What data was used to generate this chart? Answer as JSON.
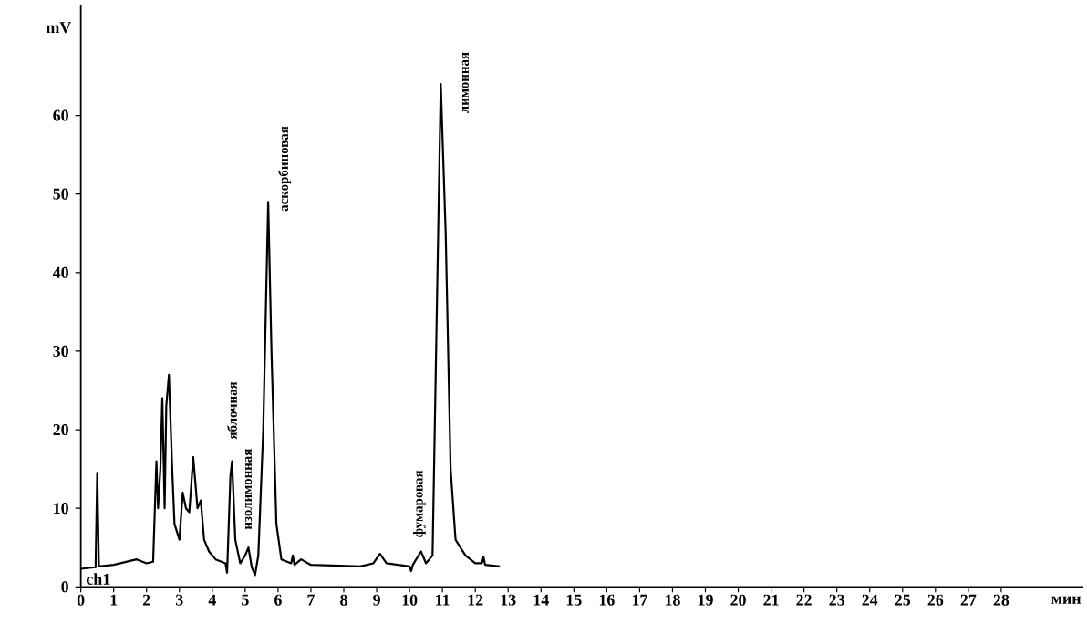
{
  "chart_data": {
    "type": "line",
    "xlabel": "мин",
    "ylabel": "mV",
    "x": [
      0,
      0.45,
      0.5,
      0.55,
      1.0,
      1.7,
      2.0,
      2.2,
      2.3,
      2.35,
      2.42,
      2.48,
      2.55,
      2.6,
      2.68,
      2.78,
      2.85,
      3.0,
      3.1,
      3.2,
      3.3,
      3.42,
      3.55,
      3.65,
      3.75,
      3.9,
      4.1,
      4.4,
      4.45,
      4.55,
      4.6,
      4.7,
      4.85,
      5.0,
      5.1,
      5.2,
      5.3,
      5.4,
      5.55,
      5.7,
      5.8,
      5.95,
      6.1,
      6.4,
      6.45,
      6.5,
      6.7,
      7.0,
      8.5,
      8.9,
      9.1,
      9.3,
      10.0,
      10.05,
      10.1,
      10.35,
      10.5,
      10.7,
      10.85,
      10.95,
      11.1,
      11.25,
      11.4,
      11.7,
      12.0,
      12.2,
      12.25,
      12.3,
      12.75
    ],
    "series": [
      {
        "color": "#000000",
        "values": [
          2.3,
          2.5,
          14.5,
          2.6,
          2.8,
          3.5,
          3.0,
          3.2,
          16,
          10,
          15,
          24,
          10,
          23,
          27,
          15,
          8,
          6,
          12,
          10,
          9.5,
          16.5,
          10,
          11,
          6,
          4.5,
          3.5,
          3,
          1.8,
          14,
          16,
          6,
          3,
          4,
          5,
          2.5,
          1.5,
          4,
          20,
          49,
          30,
          8,
          3.5,
          3,
          4,
          2.8,
          3.5,
          2.8,
          2.6,
          3,
          4.2,
          3,
          2.6,
          2,
          2.8,
          4.5,
          3,
          4,
          40,
          64,
          45,
          15,
          6,
          4,
          3,
          3,
          3.8,
          2.8,
          2.6
        ]
      }
    ],
    "xlim": [
      0,
      30.5
    ],
    "ylim": [
      0,
      74
    ],
    "xticks": [
      0,
      1,
      2,
      3,
      4,
      5,
      6,
      7,
      8,
      9,
      10,
      11,
      12,
      13,
      14,
      15,
      16,
      17,
      18,
      19,
      20,
      21,
      22,
      23,
      24,
      25,
      26,
      27,
      28
    ],
    "yticks": [
      0,
      10,
      20,
      30,
      40,
      50,
      60
    ],
    "grid": false,
    "marker": "none",
    "line_style": "solid",
    "annotations": [
      "яблочная",
      "изолимонная",
      "аскорбиновая",
      "фумаровая",
      "лимонная",
      "ch1"
    ]
  }
}
